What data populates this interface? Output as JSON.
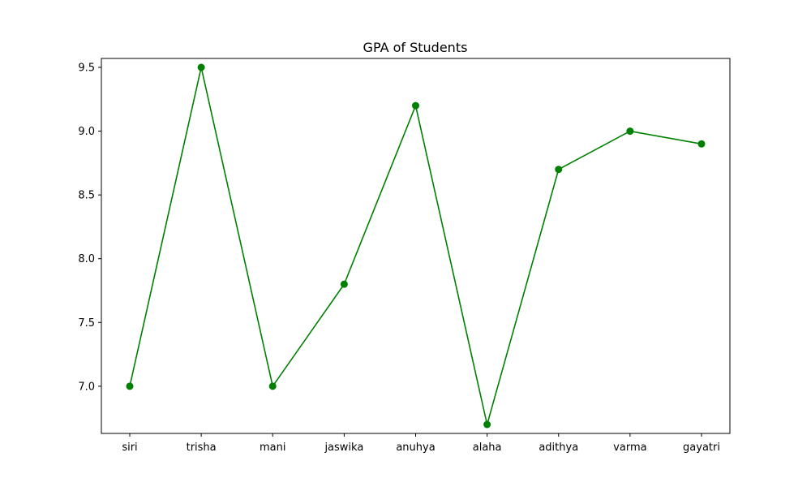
{
  "chart_data": {
    "type": "line",
    "title": "GPA of Students",
    "xlabel": "",
    "ylabel": "",
    "categories": [
      "siri",
      "trisha",
      "mani",
      "jaswika",
      "anuhya",
      "alaha",
      "adithya",
      "varma",
      "gayatri"
    ],
    "series": [
      {
        "values": [
          7.0,
          9.5,
          7.0,
          7.8,
          9.2,
          6.7,
          8.7,
          9.0,
          8.9
        ],
        "color": "#008000",
        "marker": "circle"
      }
    ],
    "ylim": [
      6.63,
      9.57
    ],
    "yticks": [
      {
        "value": 7.0,
        "label": "7.0"
      },
      {
        "value": 7.5,
        "label": "7.5"
      },
      {
        "value": 8.0,
        "label": "8.0"
      },
      {
        "value": 8.5,
        "label": "8.5"
      },
      {
        "value": 9.0,
        "label": "9.0"
      },
      {
        "value": 9.5,
        "label": "9.5"
      }
    ],
    "grid": false,
    "legend": "none"
  }
}
